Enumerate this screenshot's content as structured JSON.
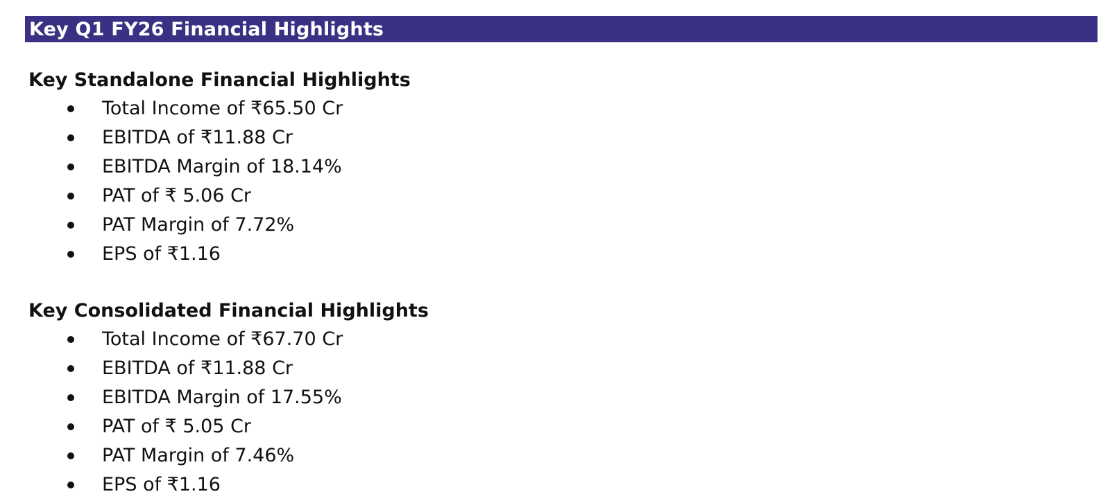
{
  "document": {
    "title": "Key Q1 FY26 Financial Highlights",
    "banner_color": "#3a3184",
    "sections": [
      {
        "heading": "Key Standalone Financial Highlights",
        "items": [
          "Total Income of ₹65.50 Cr",
          "EBITDA of ₹11.88 Cr",
          "EBITDA Margin of 18.14%",
          "PAT of ₹ 5.06 Cr",
          "PAT Margin of 7.72%",
          "EPS of ₹1.16"
        ]
      },
      {
        "heading": "Key Consolidated Financial Highlights",
        "items": [
          "Total Income of ₹67.70 Cr",
          "EBITDA of ₹11.88 Cr",
          "EBITDA Margin of 17.55%",
          "PAT of ₹ 5.05 Cr",
          "PAT Margin of 7.46%",
          "EPS of ₹1.16"
        ]
      }
    ]
  }
}
